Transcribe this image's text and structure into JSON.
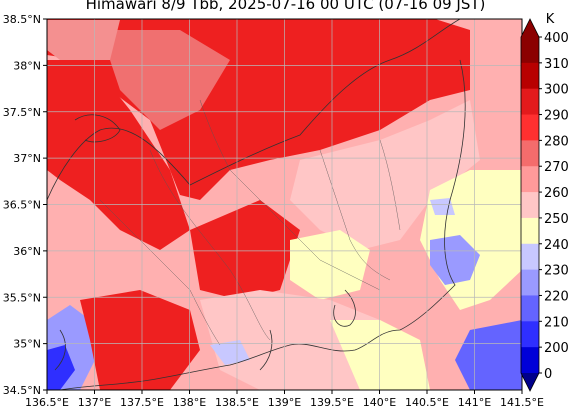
{
  "title": "Himawari 8/9 Tbb, 2025-07-16 00 UTC (07-16 09 JST)",
  "map": {
    "lon_range": [
      136.5,
      141.5
    ],
    "lat_range": [
      34.5,
      38.5
    ],
    "grid": true,
    "lon_ticks": [
      "136.5°E",
      "137°E",
      "137.5°E",
      "138°E",
      "138.5°E",
      "139°E",
      "139.5°E",
      "140°E",
      "140.5°E",
      "141°E",
      "141.5°E"
    ],
    "lat_ticks": [
      "38.5°N",
      "38°N",
      "37.5°N",
      "37°N",
      "36.5°N",
      "36°N",
      "35.5°N",
      "35°N",
      "34.5°N"
    ]
  },
  "colorbar": {
    "unit": "K",
    "levels": [
      "400",
      "310",
      "300",
      "290",
      "280",
      "270",
      "260",
      "250",
      "240",
      "230",
      "220",
      "210",
      "200",
      "0"
    ],
    "colors": [
      "#8b0000",
      "#b80000",
      "#e31a1c",
      "#ff3030",
      "#f46c6c",
      "#ff9a9a",
      "#ffc6c6",
      "#ffffc0",
      "#c8c8ff",
      "#9a9aff",
      "#6464ff",
      "#2f2fff",
      "#0000d8",
      "#00008b"
    ]
  },
  "chart_data": {
    "type": "heatmap",
    "title": "Himawari 8/9 Tbb, 2025-07-16 00 UTC (07-16 09 JST)",
    "x_range": [
      136.5,
      141.5
    ],
    "y_range": [
      34.5,
      38.5
    ],
    "colorbar_unit": "K",
    "colorbar_levels": [
      0,
      200,
      210,
      220,
      230,
      240,
      250,
      260,
      270,
      280,
      290,
      300,
      310,
      400
    ]
  }
}
